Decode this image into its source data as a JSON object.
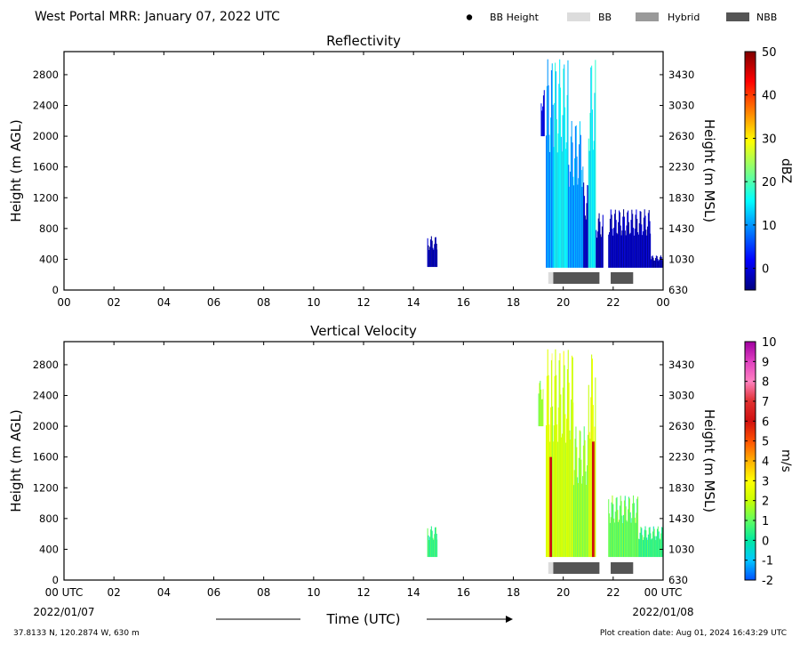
{
  "header": {
    "title": "West Portal MRR:  January 07, 2022 UTC",
    "legend": [
      {
        "label": "BB Height",
        "kind": "dot",
        "color": "#000000"
      },
      {
        "label": "BB",
        "kind": "box",
        "color": "#dcdcdc"
      },
      {
        "label": "Hybrid",
        "kind": "box",
        "color": "#9a9a9a"
      },
      {
        "label": "NBB",
        "kind": "box",
        "color": "#555555"
      }
    ]
  },
  "footer": {
    "location": "37.8133 N, 120.2874 W, 630 m",
    "creation": "Plot creation date: Aug 01, 2024 16:43:29 UTC",
    "time_label": "Time (UTC)",
    "start_date": "2022/01/07",
    "end_date": "2022/01/08"
  },
  "chart_data": [
    {
      "type": "heatmap",
      "title": "Reflectivity",
      "ylabel": "Height (m AGL)",
      "y2label": "Height (m MSL)",
      "xlim": [
        0,
        24
      ],
      "ylim": [
        0,
        3100
      ],
      "x_ticks": [
        "00",
        "02",
        "04",
        "06",
        "08",
        "10",
        "12",
        "14",
        "16",
        "18",
        "20",
        "22",
        "00"
      ],
      "y_ticks": [
        0,
        400,
        800,
        1200,
        1600,
        2000,
        2400,
        2800
      ],
      "y2_ticks": [
        630,
        1030,
        1430,
        1830,
        2230,
        2630,
        3030,
        3430
      ],
      "colorbar": {
        "label": "dBZ",
        "min": -5,
        "max": 50,
        "ticks": [
          0,
          10,
          20,
          30,
          40,
          50
        ],
        "colors": [
          "#00007f",
          "#0000ff",
          "#007fff",
          "#00ffff",
          "#7fff7f",
          "#ffff00",
          "#ff7f00",
          "#ff0000",
          "#7f0000"
        ]
      },
      "echo_regions": [
        {
          "t0": 14.55,
          "t1": 14.95,
          "hmin": 300,
          "hmax": 700,
          "value": -3
        },
        {
          "t0": 19.1,
          "t1": 19.25,
          "hmin": 2000,
          "hmax": 2600,
          "value": 0
        },
        {
          "t0": 19.3,
          "t1": 19.6,
          "hmin": 290,
          "hmax": 3000,
          "value": 10
        },
        {
          "t0": 19.6,
          "t1": 20.2,
          "hmin": 290,
          "hmax": 3000,
          "value": 15
        },
        {
          "t0": 20.2,
          "t1": 20.8,
          "hmin": 290,
          "hmax": 2200,
          "value": 10
        },
        {
          "t0": 20.8,
          "t1": 21.0,
          "hmin": 290,
          "hmax": 1400,
          "value": -2
        },
        {
          "t0": 21.0,
          "t1": 21.3,
          "hmin": 290,
          "hmax": 3000,
          "value": 15
        },
        {
          "t0": 21.3,
          "t1": 21.6,
          "hmin": 290,
          "hmax": 1000,
          "value": -3
        },
        {
          "t0": 21.8,
          "t1": 23.5,
          "hmin": 290,
          "hmax": 1050,
          "value": -2
        },
        {
          "t0": 23.5,
          "t1": 24.0,
          "hmin": 290,
          "hmax": 450,
          "value": -3
        }
      ],
      "bb_bars": [
        {
          "t0": 19.4,
          "t1": 19.6,
          "type": "BB"
        },
        {
          "t0": 19.6,
          "t1": 21.45,
          "type": "NBB"
        },
        {
          "t0": 21.9,
          "t1": 22.8,
          "type": "NBB"
        }
      ]
    },
    {
      "type": "heatmap",
      "title": "Vertical Velocity",
      "ylabel": "Height (m AGL)",
      "y2label": "Height (m MSL)",
      "xlim": [
        0,
        24
      ],
      "ylim": [
        0,
        3100
      ],
      "x_ticks": [
        "00 UTC",
        "02",
        "04",
        "06",
        "08",
        "10",
        "12",
        "14",
        "16",
        "18",
        "20",
        "22",
        "00 UTC"
      ],
      "y_ticks": [
        0,
        400,
        800,
        1200,
        1600,
        2000,
        2400,
        2800
      ],
      "y2_ticks": [
        630,
        1030,
        1430,
        1830,
        2230,
        2630,
        3030,
        3430
      ],
      "colorbar": {
        "label": "m/s",
        "min": -2,
        "max": 10,
        "ticks": [
          -2,
          -1,
          0,
          1,
          2,
          3,
          4,
          5,
          6,
          7,
          8,
          9,
          10
        ],
        "colors": [
          "#0050ff",
          "#00c8ff",
          "#00e8a0",
          "#60ff60",
          "#c8ff00",
          "#ffff00",
          "#ffb000",
          "#ff5000",
          "#d01010",
          "#e03030",
          "#ff80c0",
          "#e040c0",
          "#a000a0"
        ]
      },
      "echo_regions": [
        {
          "t0": 14.55,
          "t1": 14.95,
          "hmin": 300,
          "hmax": 700,
          "value": 0.5
        },
        {
          "t0": 19.0,
          "t1": 19.2,
          "hmin": 2000,
          "hmax": 2600,
          "value": 1.5
        },
        {
          "t0": 19.3,
          "t1": 19.55,
          "hmin": 300,
          "hmax": 3000,
          "value": 2.5
        },
        {
          "t0": 19.55,
          "t1": 20.4,
          "hmin": 300,
          "hmax": 3000,
          "value": 2.2
        },
        {
          "t0": 20.4,
          "t1": 21.0,
          "hmin": 300,
          "hmax": 2000,
          "value": 1.5
        },
        {
          "t0": 21.0,
          "t1": 21.3,
          "hmin": 300,
          "hmax": 3000,
          "value": 2.5
        },
        {
          "t0": 21.8,
          "t1": 23.0,
          "hmin": 300,
          "hmax": 1100,
          "value": 1.0
        },
        {
          "t0": 23.0,
          "t1": 24.0,
          "hmin": 300,
          "hmax": 700,
          "value": 0.5
        }
      ],
      "strong_updrafts": [
        {
          "t0": 19.45,
          "t1": 19.55,
          "hmin": 300,
          "hmax": 1600,
          "value": 6
        },
        {
          "t0": 21.15,
          "t1": 21.25,
          "hmin": 300,
          "hmax": 1800,
          "value": 6
        }
      ],
      "bb_bars": [
        {
          "t0": 19.4,
          "t1": 19.6,
          "type": "BB"
        },
        {
          "t0": 19.6,
          "t1": 21.45,
          "type": "NBB"
        },
        {
          "t0": 21.9,
          "t1": 22.8,
          "type": "NBB"
        }
      ]
    }
  ]
}
